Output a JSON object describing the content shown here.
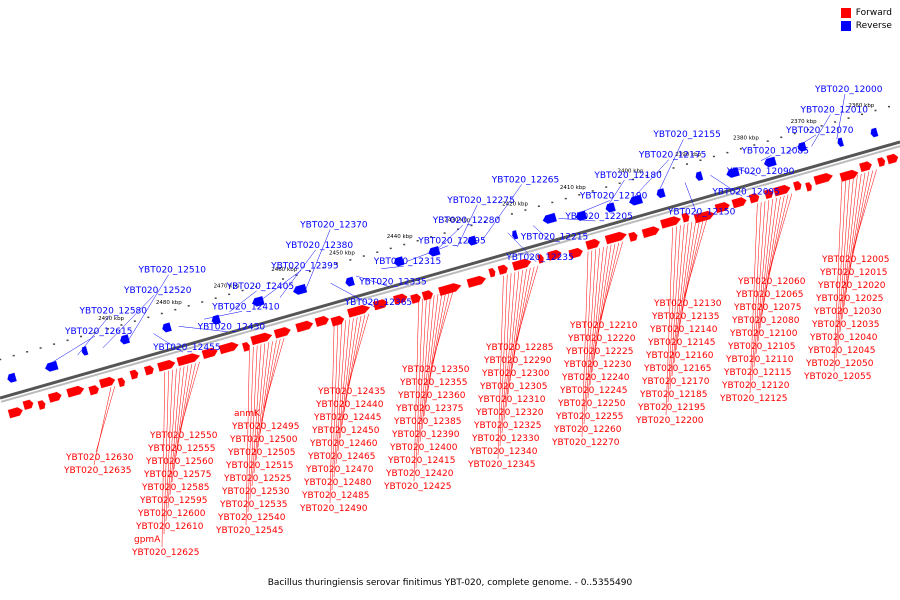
{
  "legend": {
    "forward_label": "Forward",
    "reverse_label": "Reverse",
    "forward_color": "#ff0000",
    "reverse_color": "#0000ff"
  },
  "caption": "Bacillus thuringiensis serovar finitimus YBT-020, complete genome. - 0..5355490",
  "axis": {
    "ticks": [
      "2360 kbp",
      "2370 kbp",
      "2380 kbp",
      "2390 kbp",
      "2400 kbp",
      "2410 kbp",
      "2420 kbp",
      "2430 kbp",
      "2440 kbp",
      "2450 kbp",
      "2460 kbp",
      "2470 kbp",
      "2480 kbp",
      "2490 kbp"
    ]
  },
  "reverse_labels": [
    "YBT020_12000",
    "YBT020_12010",
    "YBT020_12070",
    "YBT020_12085",
    "YBT020_12090",
    "YBT020_12095",
    "YBT020_12150",
    "YBT020_12155",
    "YBT020_12175",
    "YBT020_12180",
    "YBT020_12190",
    "YBT020_12205",
    "YBT020_12215",
    "YBT020_12235",
    "YBT020_12265",
    "YBT020_12275",
    "YBT020_12280",
    "YBT020_12295",
    "YBT020_12315",
    "YBT020_12335",
    "YBT020_12365",
    "YBT020_12370",
    "YBT020_12380",
    "YBT020_12395",
    "YBT020_12405",
    "YBT020_12410",
    "YBT020_12430",
    "YBT020_12455",
    "YBT020_12510",
    "YBT020_12520",
    "YBT020_12580",
    "YBT020_12615"
  ],
  "forward_labels": [
    "YBT020_12005",
    "YBT020_12015",
    "YBT020_12020",
    "YBT020_12025",
    "YBT020_12030",
    "YBT020_12035",
    "YBT020_12040",
    "YBT020_12045",
    "YBT020_12050",
    "YBT020_12055",
    "YBT020_12060",
    "YBT020_12065",
    "YBT020_12075",
    "YBT020_12080",
    "YBT020_12100",
    "YBT020_12105",
    "YBT020_12110",
    "YBT020_12115",
    "YBT020_12120",
    "YBT020_12125",
    "YBT020_12130",
    "YBT020_12135",
    "YBT020_12140",
    "YBT020_12145",
    "YBT020_12160",
    "YBT020_12165",
    "YBT020_12170",
    "YBT020_12185",
    "YBT020_12195",
    "YBT020_12200",
    "YBT020_12210",
    "YBT020_12220",
    "YBT020_12225",
    "YBT020_12230",
    "YBT020_12240",
    "YBT020_12245",
    "YBT020_12250",
    "YBT020_12255",
    "YBT020_12260",
    "YBT020_12270",
    "YBT020_12285",
    "YBT020_12290",
    "YBT020_12300",
    "YBT020_12305",
    "YBT020_12310",
    "YBT020_12320",
    "YBT020_12325",
    "YBT020_12330",
    "YBT020_12340",
    "YBT020_12345",
    "YBT020_12350",
    "YBT020_12355",
    "YBT020_12360",
    "YBT020_12375",
    "YBT020_12385",
    "YBT020_12390",
    "YBT020_12400",
    "YBT020_12415",
    "YBT020_12420",
    "YBT020_12425",
    "YBT020_12435",
    "YBT020_12440",
    "YBT020_12445",
    "YBT020_12450",
    "YBT020_12460",
    "YBT020_12465",
    "YBT020_12470",
    "YBT020_12480",
    "YBT020_12485",
    "YBT020_12490",
    "anmK",
    "YBT020_12495",
    "YBT020_12500",
    "YBT020_12505",
    "YBT020_12515",
    "YBT020_12525",
    "YBT020_12530",
    "YBT020_12535",
    "YBT020_12540",
    "YBT020_12545",
    "YBT020_12550",
    "YBT020_12555",
    "YBT020_12560",
    "YBT020_12575",
    "YBT020_12585",
    "YBT020_12595",
    "YBT020_12600",
    "YBT020_12610",
    "gpmA",
    "YBT020_12625",
    "YBT020_12630",
    "YBT020_12635"
  ]
}
